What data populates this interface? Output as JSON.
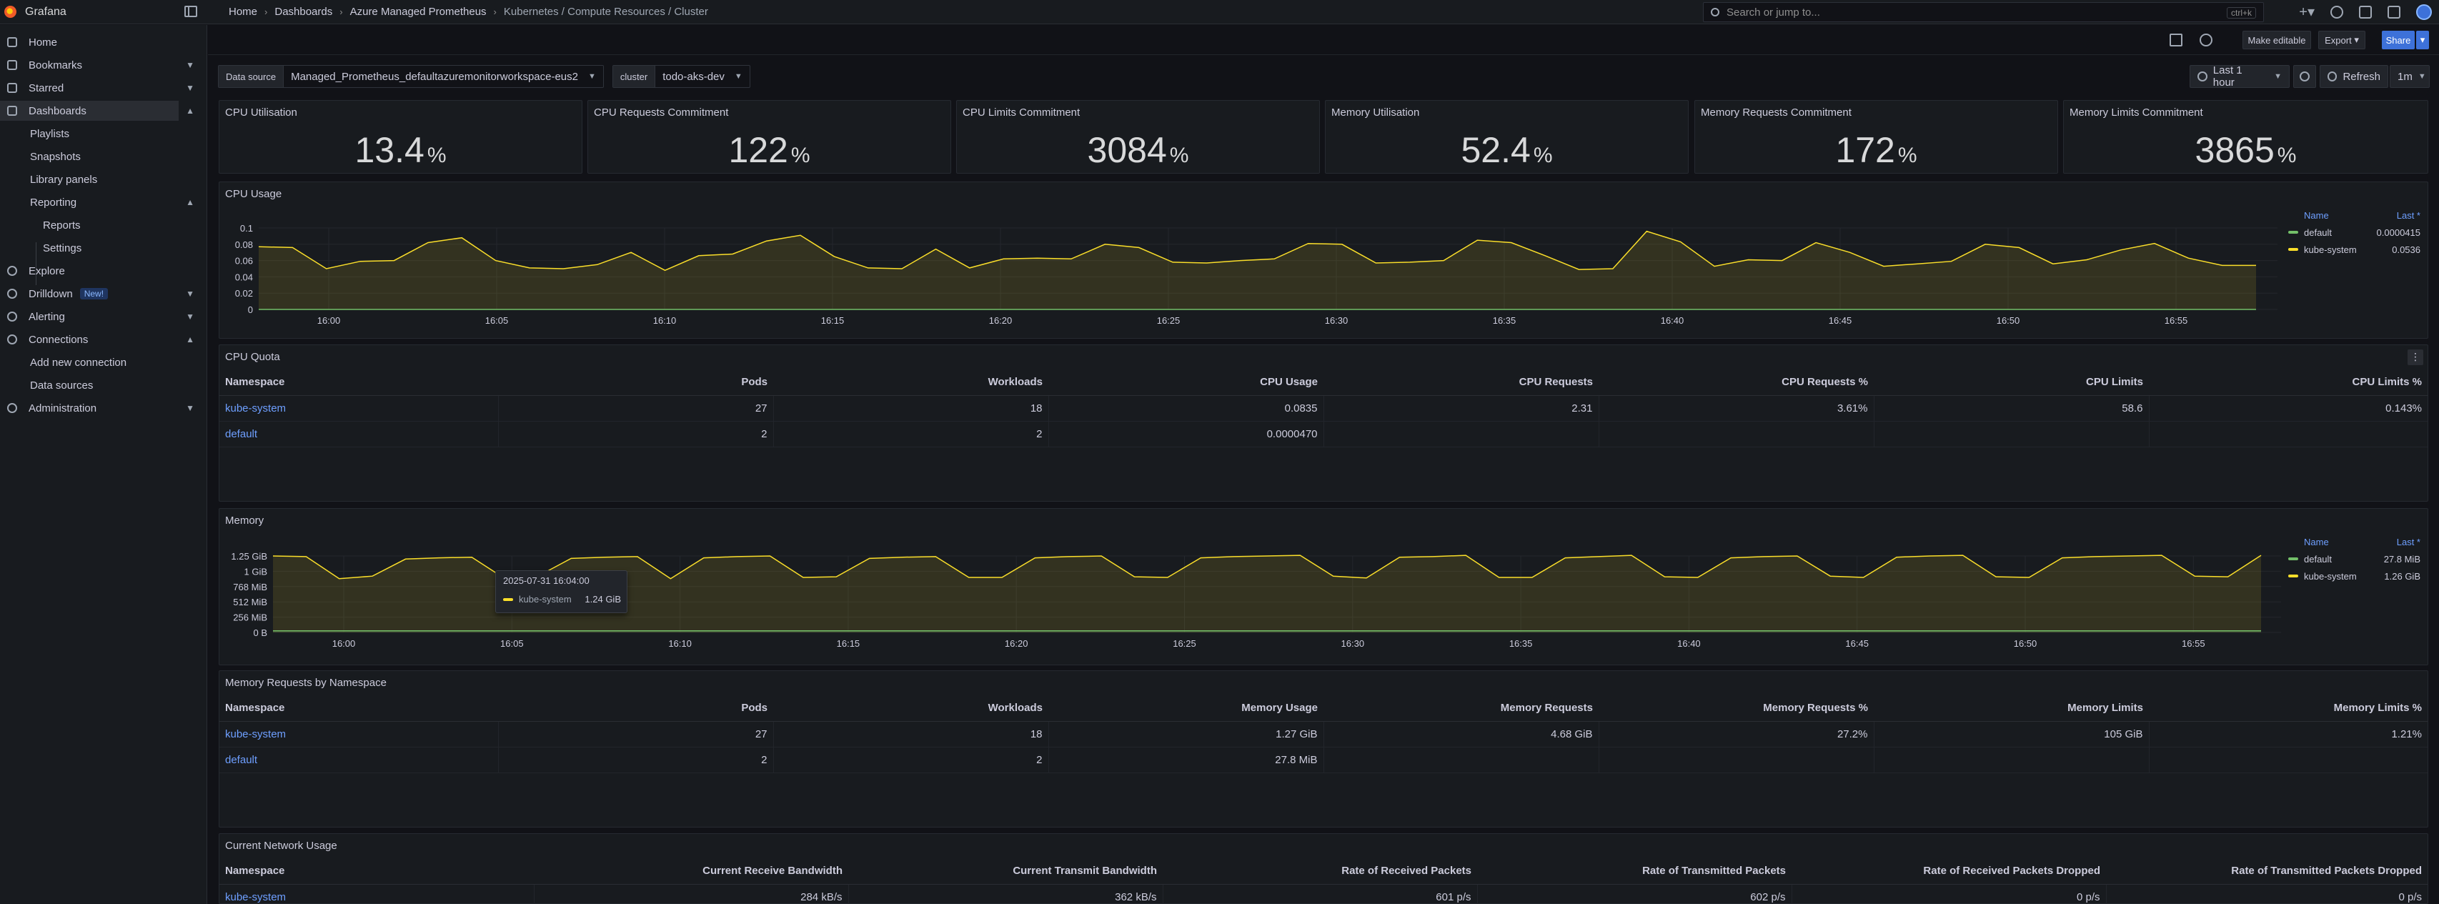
{
  "app": {
    "name": "Grafana"
  },
  "breadcrumb": [
    "Home",
    "Dashboards",
    "Azure Managed Prometheus",
    "Kubernetes / Compute Resources / Cluster"
  ],
  "search": {
    "placeholder": "Search or jump to...",
    "shortcut": "ctrl+k"
  },
  "sidebar": {
    "items": [
      {
        "label": "Home",
        "icon": "home-icon"
      },
      {
        "label": "Bookmarks",
        "icon": "bookmark-icon"
      },
      {
        "label": "Starred",
        "icon": "star-icon"
      },
      {
        "label": "Dashboards",
        "icon": "dashboards-icon"
      },
      {
        "label": "Playlists"
      },
      {
        "label": "Snapshots"
      },
      {
        "label": "Library panels"
      },
      {
        "label": "Reporting"
      },
      {
        "label": "Reports"
      },
      {
        "label": "Settings"
      },
      {
        "label": "Explore",
        "icon": "compass-icon"
      },
      {
        "label": "Drilldown",
        "icon": "drilldown-icon",
        "badge": "New!"
      },
      {
        "label": "Alerting",
        "icon": "bell-icon"
      },
      {
        "label": "Connections",
        "icon": "connections-icon"
      },
      {
        "label": "Add new connection"
      },
      {
        "label": "Data sources"
      },
      {
        "label": "Administration",
        "icon": "gear-icon"
      }
    ]
  },
  "toolbar": {
    "make_editable": "Make editable",
    "export": "Export",
    "share": "Share"
  },
  "variables": {
    "datasource": {
      "label": "Data source",
      "value": "Managed_Prometheus_defaultazuremonitorworkspace-eus2"
    },
    "cluster": {
      "label": "cluster",
      "value": "todo-aks-dev"
    }
  },
  "time": {
    "range": "Last 1 hour",
    "refresh": "Refresh",
    "interval": "1m"
  },
  "stats": [
    {
      "title": "CPU Utilisation",
      "value": "13.4",
      "unit": "%"
    },
    {
      "title": "CPU Requests Commitment",
      "value": "122",
      "unit": "%"
    },
    {
      "title": "CPU Limits Commitment",
      "value": "3084",
      "unit": "%"
    },
    {
      "title": "Memory Utilisation",
      "value": "52.4",
      "unit": "%"
    },
    {
      "title": "Memory Requests Commitment",
      "value": "172",
      "unit": "%"
    },
    {
      "title": "Memory Limits Commitment",
      "value": "3865",
      "unit": "%"
    }
  ],
  "cpu_usage": {
    "title": "CPU Usage",
    "legend_name": "Name",
    "legend_last": "Last *",
    "legend": [
      {
        "name": "default",
        "last": "0.0000415",
        "color": "#73bf69"
      },
      {
        "name": "kube-system",
        "last": "0.0536",
        "color": "#fade2a"
      }
    ]
  },
  "cpu_quota": {
    "title": "CPU Quota",
    "headers": [
      "Namespace",
      "Pods",
      "Workloads",
      "CPU Usage",
      "CPU Requests",
      "CPU Requests %",
      "CPU Limits",
      "CPU Limits %"
    ],
    "rows": [
      [
        "kube-system",
        "27",
        "18",
        "0.0835",
        "2.31",
        "3.61%",
        "58.6",
        "0.143%"
      ],
      [
        "default",
        "2",
        "2",
        "0.0000470",
        "",
        "",
        "",
        ""
      ]
    ]
  },
  "memory": {
    "title": "Memory",
    "legend_name": "Name",
    "legend_last": "Last *",
    "legend": [
      {
        "name": "default",
        "last": "27.8 MiB",
        "color": "#73bf69"
      },
      {
        "name": "kube-system",
        "last": "1.26 GiB",
        "color": "#fade2a"
      }
    ],
    "tooltip": {
      "time": "2025-07-31 16:04:00",
      "series": "kube-system",
      "value": "1.24 GiB"
    }
  },
  "memory_requests": {
    "title": "Memory Requests by Namespace",
    "headers": [
      "Namespace",
      "Pods",
      "Workloads",
      "Memory Usage",
      "Memory Requests",
      "Memory Requests %",
      "Memory Limits",
      "Memory Limits %"
    ],
    "rows": [
      [
        "kube-system",
        "27",
        "18",
        "1.27 GiB",
        "4.68 GiB",
        "27.2%",
        "105 GiB",
        "1.21%"
      ],
      [
        "default",
        "2",
        "2",
        "27.8 MiB",
        "",
        "",
        "",
        ""
      ]
    ]
  },
  "network": {
    "title": "Current Network Usage",
    "headers": [
      "Namespace",
      "Current Receive Bandwidth",
      "Current Transmit Bandwidth",
      "Rate of Received Packets",
      "Rate of Transmitted Packets",
      "Rate of Received Packets Dropped",
      "Rate of Transmitted Packets Dropped"
    ],
    "rows": [
      [
        "kube-system",
        "284 kB/s",
        "362 kB/s",
        "601 p/s",
        "602 p/s",
        "0 p/s",
        "0 p/s"
      ]
    ]
  },
  "chart_data": [
    {
      "type": "area",
      "title": "CPU Usage",
      "x_ticks": [
        "16:00",
        "16:05",
        "16:10",
        "16:15",
        "16:20",
        "16:25",
        "16:30",
        "16:35",
        "16:40",
        "16:45",
        "16:50",
        "16:55"
      ],
      "y_ticks": [
        "0",
        "0.02",
        "0.04",
        "0.06",
        "0.08",
        "0.1"
      ],
      "ylim": [
        0,
        0.1
      ],
      "series": [
        {
          "name": "kube-system",
          "color": "#fade2a",
          "values": [
            0.077,
            0.076,
            0.05,
            0.059,
            0.06,
            0.082,
            0.088,
            0.06,
            0.051,
            0.05,
            0.055,
            0.07,
            0.048,
            0.066,
            0.068,
            0.084,
            0.091,
            0.065,
            0.051,
            0.05,
            0.074,
            0.051,
            0.062,
            0.063,
            0.062,
            0.08,
            0.076,
            0.058,
            0.057,
            0.06,
            0.062,
            0.081,
            0.08,
            0.057,
            0.058,
            0.06,
            0.085,
            0.082,
            0.066,
            0.049,
            0.05,
            0.096,
            0.083,
            0.053,
            0.061,
            0.06,
            0.082,
            0.07,
            0.053,
            0.056,
            0.059,
            0.08,
            0.076,
            0.056,
            0.061,
            0.073,
            0.081,
            0.063,
            0.054,
            0.054
          ]
        },
        {
          "name": "default",
          "color": "#73bf69",
          "values": [
            0,
            0,
            0,
            0,
            0,
            0,
            0,
            0,
            0,
            0,
            0,
            0,
            0,
            0,
            0,
            0,
            0,
            0,
            0,
            0,
            0,
            0,
            0,
            0,
            0,
            0,
            0,
            0,
            0,
            0,
            0,
            0,
            0,
            0,
            0,
            0,
            0,
            0,
            0,
            0,
            0,
            0,
            0,
            0,
            0,
            0,
            0,
            0,
            0,
            0,
            0,
            0,
            0,
            0,
            0,
            0,
            0,
            0,
            0,
            0
          ]
        }
      ]
    },
    {
      "type": "area",
      "title": "Memory",
      "x_ticks": [
        "16:00",
        "16:05",
        "16:10",
        "16:15",
        "16:20",
        "16:25",
        "16:30",
        "16:35",
        "16:40",
        "16:45",
        "16:50",
        "16:55"
      ],
      "y_ticks": [
        "0 B",
        "256 MiB",
        "512 MiB",
        "768 MiB",
        "1 GiB",
        "1.25 GiB"
      ],
      "ylim": [
        0,
        1.25
      ],
      "series": [
        {
          "name": "kube-system",
          "color": "#fade2a",
          "values": [
            1.25,
            1.24,
            0.88,
            0.92,
            1.2,
            1.22,
            1.23,
            0.88,
            0.92,
            1.21,
            1.23,
            1.24,
            0.88,
            1.22,
            1.24,
            1.25,
            0.9,
            0.91,
            1.21,
            1.23,
            1.24,
            0.9,
            0.9,
            1.22,
            1.24,
            1.25,
            0.91,
            0.9,
            1.22,
            1.24,
            1.25,
            1.26,
            0.92,
            0.89,
            1.23,
            1.24,
            1.26,
            0.9,
            0.9,
            1.22,
            1.24,
            1.26,
            0.91,
            0.9,
            1.22,
            1.24,
            1.25,
            0.92,
            0.9,
            1.23,
            1.25,
            1.26,
            0.91,
            0.9,
            1.22,
            1.24,
            1.25,
            1.26,
            0.92,
            0.91,
            1.26
          ]
        },
        {
          "name": "default",
          "color": "#73bf69",
          "values": [
            0.027,
            0.027,
            0.027,
            0.027,
            0.027,
            0.027,
            0.027,
            0.027,
            0.027,
            0.027,
            0.027,
            0.027,
            0.027,
            0.027,
            0.027,
            0.027,
            0.027,
            0.027,
            0.027,
            0.027,
            0.027,
            0.027,
            0.027,
            0.027,
            0.027,
            0.027,
            0.027,
            0.027,
            0.027,
            0.027,
            0.027,
            0.027,
            0.027,
            0.027,
            0.027,
            0.027,
            0.027,
            0.027,
            0.027,
            0.027,
            0.027,
            0.027,
            0.027,
            0.027,
            0.027,
            0.027,
            0.027,
            0.027,
            0.027,
            0.027,
            0.027,
            0.027,
            0.027,
            0.027,
            0.027,
            0.027,
            0.027,
            0.027,
            0.027,
            0.027,
            0.027
          ]
        }
      ]
    }
  ]
}
